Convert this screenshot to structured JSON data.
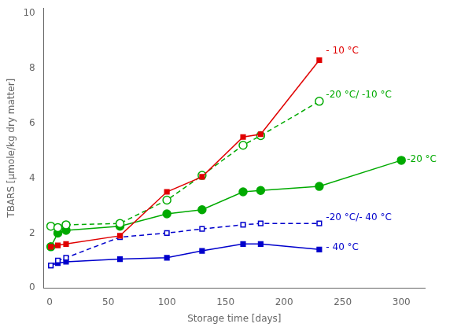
{
  "chart_data": {
    "type": "line",
    "x_label": "Storage time [days]",
    "y_label": "TBARS [μmole/kg dry matter]",
    "xlim": [
      -5,
      320
    ],
    "ylim": [
      0,
      10.2
    ],
    "xticks": [
      0,
      50,
      100,
      150,
      200,
      250,
      300
    ],
    "yticks": [
      0,
      2,
      4,
      6,
      8,
      10
    ],
    "grid": false,
    "legend": false,
    "series": [
      {
        "name": "- 10 °C",
        "color": "#e00000",
        "marker": "square",
        "line_style": "solid",
        "x": [
          1,
          7,
          14,
          60,
          100,
          130,
          165,
          180,
          230
        ],
        "values": [
          1.5,
          1.55,
          1.6,
          1.9,
          3.5,
          4.05,
          5.5,
          5.6,
          8.3
        ]
      },
      {
        "name": "-20 °C/ -10 °C",
        "color": "#00aa00",
        "marker": "circle_open",
        "line_style": "dashed",
        "x": [
          1,
          7,
          14,
          60,
          100,
          130,
          165,
          180,
          230
        ],
        "values": [
          2.25,
          2.2,
          2.3,
          2.35,
          3.2,
          4.1,
          5.2,
          5.55,
          6.8
        ]
      },
      {
        "name": "-20 °C",
        "color": "#00aa00",
        "marker": "circle",
        "line_style": "solid",
        "x": [
          1,
          7,
          14,
          60,
          100,
          130,
          165,
          180,
          230,
          300
        ],
        "values": [
          1.5,
          2.0,
          2.1,
          2.25,
          2.7,
          2.85,
          3.5,
          3.55,
          3.7,
          4.65
        ]
      },
      {
        "name": "-20 °C/- 40 °C",
        "color": "#0000cc",
        "marker": "square_open",
        "line_style": "dashed",
        "x": [
          1,
          7,
          14,
          60,
          100,
          130,
          165,
          180,
          230
        ],
        "values": [
          0.82,
          1.0,
          1.1,
          1.85,
          2.0,
          2.15,
          2.3,
          2.35,
          2.35
        ]
      },
      {
        "name": "- 40 °C",
        "color": "#0000cc",
        "marker": "square",
        "line_style": "solid",
        "x": [
          1,
          7,
          14,
          60,
          100,
          130,
          165,
          180,
          230
        ],
        "values": [
          0.82,
          0.9,
          0.95,
          1.05,
          1.1,
          1.35,
          1.6,
          1.6,
          1.4
        ]
      }
    ],
    "annotations": [
      {
        "text": "- 10 °C",
        "x": 233,
        "y": 8.45,
        "color": "#e00000"
      },
      {
        "text": "-20 °C/ -10 °C",
        "x": 233,
        "y": 6.85,
        "color": "#00aa00"
      },
      {
        "text": "-20 °C",
        "x": 302,
        "y": 4.5,
        "color": "#00aa00"
      },
      {
        "text": "-20 °C/- 40 °C",
        "x": 233,
        "y": 2.4,
        "color": "#0000cc"
      },
      {
        "text": "- 40 °C",
        "x": 233,
        "y": 1.3,
        "color": "#0000cc"
      }
    ]
  }
}
